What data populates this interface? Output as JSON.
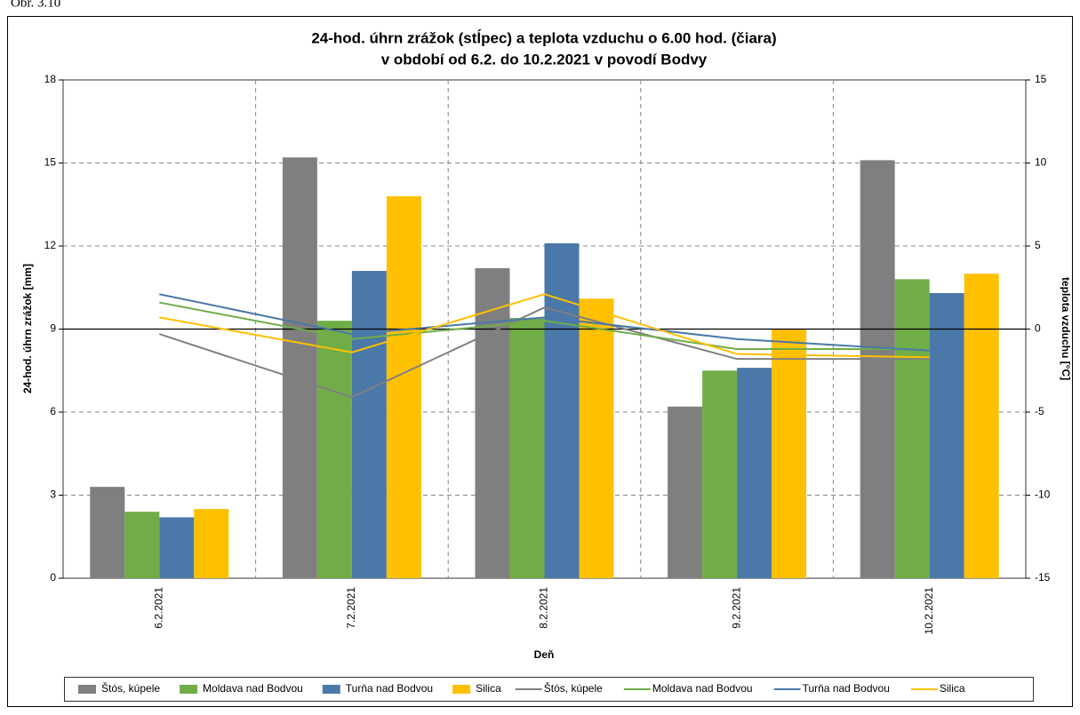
{
  "caption": "Obr. 3.10",
  "chart_data": {
    "type": "combo",
    "title": "24-hod. úhrn zrážok (stĺpec) a teplota vzduchu o 6.00 hod. (čiara)",
    "subtitle": "v období od 6.2. do 10.2.2021 v povodí  Bodvy",
    "x_label": "Deň",
    "y_label": "24-hod. úhrn zrážok [mm]",
    "y2_label": "teplota vzduchu [°C]",
    "categories": [
      "6.2.2021",
      "7.2.2021",
      "8.2.2021",
      "9.2.2021",
      "10.2.2021"
    ],
    "ylim": [
      0,
      18
    ],
    "yticks": [
      0,
      3,
      6,
      9,
      12,
      15,
      18
    ],
    "y2lim": [
      -15,
      15
    ],
    "y2ticks": [
      -15,
      -10,
      -5,
      0,
      5,
      10,
      15
    ],
    "grid": true,
    "legend": "bottom",
    "series": [
      {
        "name": "Štós, kúpele",
        "type": "bar",
        "color": "#7f7f7f",
        "values": [
          3.3,
          15.2,
          11.2,
          6.2,
          15.1
        ]
      },
      {
        "name": "Moldava nad Bodvou",
        "type": "bar",
        "color": "#70ad47",
        "values": [
          2.4,
          9.3,
          9.4,
          7.5,
          10.8
        ]
      },
      {
        "name": "Turňa nad Bodvou",
        "type": "bar",
        "color": "#4a78a8",
        "values": [
          2.2,
          11.1,
          12.1,
          7.6,
          10.3
        ]
      },
      {
        "name": "Silica",
        "type": "bar",
        "color": "#ffc000",
        "values": [
          2.5,
          13.8,
          10.1,
          9.0,
          11.0
        ]
      },
      {
        "name": "Štós, kúpele",
        "type": "line",
        "axis": "y2",
        "color": "#808080",
        "values": [
          -0.3,
          -4.1,
          1.3,
          -1.8,
          -1.8
        ]
      },
      {
        "name": "Moldava nad Bodvou",
        "type": "line",
        "axis": "y2",
        "color": "#70ad47",
        "values": [
          1.6,
          -0.6,
          0.5,
          -1.2,
          -1.2
        ]
      },
      {
        "name": "Turňa nad Bodvou",
        "type": "line",
        "axis": "y2",
        "color": "#4a78a8",
        "values": [
          2.1,
          -0.3,
          0.7,
          -0.6,
          -1.3
        ]
      },
      {
        "name": "Silica",
        "type": "line",
        "axis": "y2",
        "color": "#ffc000",
        "values": [
          0.7,
          -1.4,
          2.1,
          -1.5,
          -1.7
        ]
      }
    ]
  }
}
